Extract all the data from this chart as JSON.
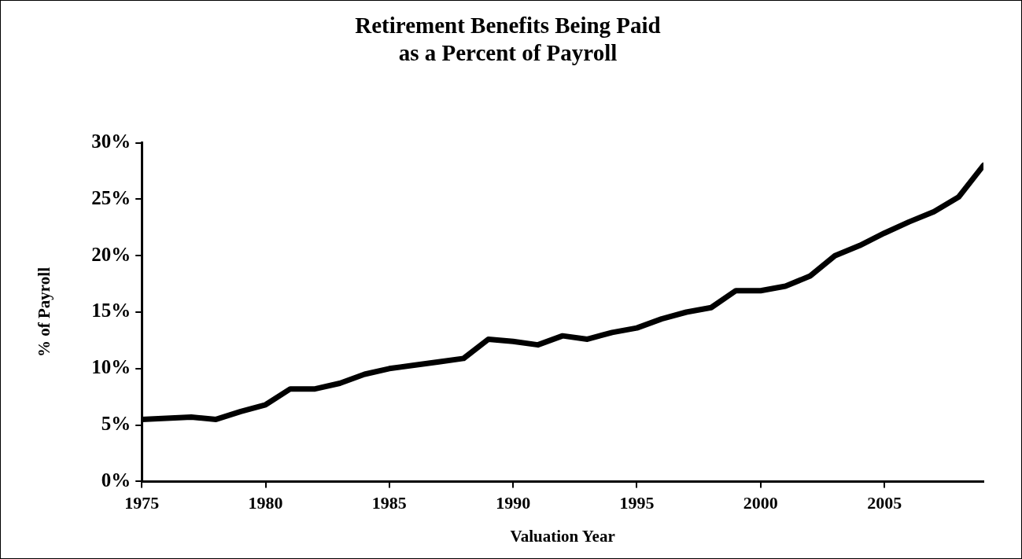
{
  "chart_data": {
    "type": "line",
    "title": "Retirement Benefits Being Paid\nas a Percent of Payroll",
    "xlabel": "Valuation Year",
    "ylabel": "% of Payroll",
    "x": [
      1975,
      1976,
      1977,
      1978,
      1979,
      1980,
      1981,
      1982,
      1983,
      1984,
      1985,
      1986,
      1987,
      1988,
      1989,
      1990,
      1991,
      1992,
      1993,
      1994,
      1995,
      1996,
      1997,
      1998,
      1999,
      2000,
      2001,
      2002,
      2003,
      2004,
      2005,
      2006,
      2007,
      2008,
      2009
    ],
    "series": [
      {
        "color": "#000000",
        "values": [
          5.5,
          5.6,
          5.7,
          5.5,
          6.2,
          6.8,
          8.2,
          8.2,
          8.7,
          9.5,
          10.0,
          10.3,
          10.6,
          10.9,
          12.6,
          12.4,
          12.1,
          12.9,
          12.6,
          13.2,
          13.6,
          14.4,
          15.0,
          15.4,
          16.9,
          16.9,
          17.3,
          18.2,
          20.0,
          20.9,
          22.0,
          23.0,
          23.9,
          25.2,
          28.0
        ]
      }
    ],
    "xlim": [
      1975,
      2009
    ],
    "xticks": [
      1975,
      1980,
      1985,
      1990,
      1995,
      2000,
      2005
    ],
    "ylim": [
      0,
      30
    ],
    "yticks": [
      {
        "value": 0,
        "label": "0%"
      },
      {
        "value": 5,
        "label": "5%"
      },
      {
        "value": 10,
        "label": "10%"
      },
      {
        "value": 15,
        "label": "15%"
      },
      {
        "value": 20,
        "label": "20%"
      },
      {
        "value": 25,
        "label": "25%"
      },
      {
        "value": 30,
        "label": "30%"
      }
    ],
    "grid": false,
    "legend": false,
    "marker": "none",
    "line_style": "solid"
  }
}
